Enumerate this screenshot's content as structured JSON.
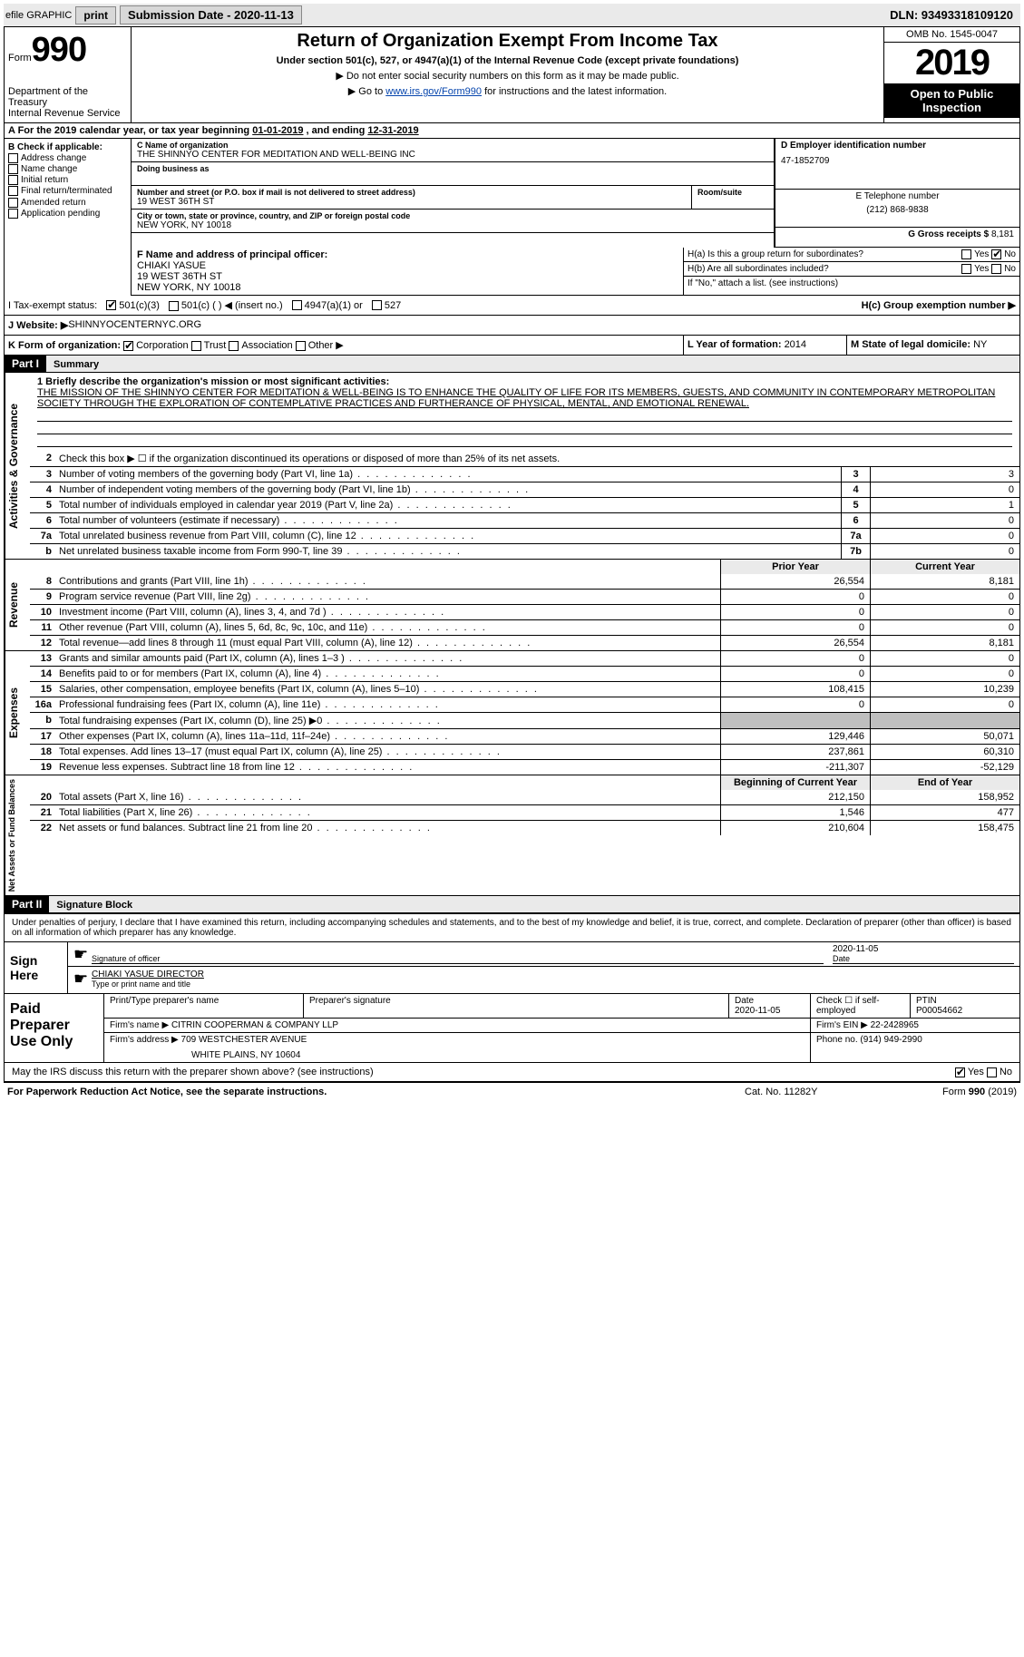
{
  "topbar": {
    "efile_label": "efile GRAPHIC",
    "print_btn": "print",
    "submission_label": "Submission Date - 2020-11-13",
    "dln": "DLN: 93493318109120"
  },
  "header": {
    "form_prefix": "Form",
    "form_number": "990",
    "dept1": "Department of the Treasury",
    "dept2": "Internal Revenue Service",
    "title": "Return of Organization Exempt From Income Tax",
    "subtitle": "Under section 501(c), 527, or 4947(a)(1) of the Internal Revenue Code (except private foundations)",
    "note1": "▶ Do not enter social security numbers on this form as it may be made public.",
    "note2_pre": "▶ Go to ",
    "note2_link": "www.irs.gov/Form990",
    "note2_post": " for instructions and the latest information.",
    "omb": "OMB No. 1545-0047",
    "year": "2019",
    "inspect1": "Open to Public",
    "inspect2": "Inspection"
  },
  "period": {
    "label_a": "A For the 2019 calendar year, or tax year beginning ",
    "begin": "01-01-2019",
    "mid": " , and ending ",
    "end": "12-31-2019"
  },
  "colB": {
    "header": "B Check if applicable:",
    "items": [
      "Address change",
      "Name change",
      "Initial return",
      "Final return/terminated",
      "Amended return",
      "Application pending"
    ]
  },
  "colC": {
    "name_lbl": "C Name of organization",
    "name": "THE SHINNYO CENTER FOR MEDITATION AND WELL-BEING INC",
    "dba_lbl": "Doing business as",
    "addr_lbl": "Number and street (or P.O. box if mail is not delivered to street address)",
    "addr": "19 WEST 36TH ST",
    "room_lbl": "Room/suite",
    "city_lbl": "City or town, state or province, country, and ZIP or foreign postal code",
    "city": "NEW YORK, NY  10018"
  },
  "colD": {
    "ein_lbl": "D Employer identification number",
    "ein": "47-1852709",
    "phone_lbl": "E Telephone number",
    "phone": "(212) 868-9838",
    "gross_lbl": "G Gross receipts $ ",
    "gross": "8,181"
  },
  "officer": {
    "lbl": "F Name and address of principal officer:",
    "name": "CHIAKI YASUE",
    "addr1": "19 WEST 36TH ST",
    "addr2": "NEW YORK, NY  10018"
  },
  "h": {
    "ha_lbl": "H(a)  Is this a group return for subordinates?",
    "hb_lbl": "H(b)  Are all subordinates included?",
    "hb_note": "If \"No,\" attach a list. (see instructions)",
    "hc_lbl": "H(c)  Group exemption number ▶",
    "yes": "Yes",
    "no": "No"
  },
  "tax": {
    "lbl": "I  Tax-exempt status:",
    "c3": "501(c)(3)",
    "c": "501(c) (  ) ◀ (insert no.)",
    "a1": "4947(a)(1) or",
    "s527": "527"
  },
  "web": {
    "lbl": "J  Website: ▶ ",
    "val": "SHINNYOCENTERNYC.ORG"
  },
  "orgK": {
    "lbl": "K Form of organization:",
    "corp": "Corporation",
    "trust": "Trust",
    "assoc": "Association",
    "other": "Other ▶",
    "yr_lbl": "L Year of formation: ",
    "yr": "2014",
    "state_lbl": "M State of legal domicile: ",
    "state": "NY"
  },
  "part1": {
    "hdr": "Part I",
    "title": "Summary"
  },
  "mission": {
    "lbl": "1  Briefly describe the organization's mission or most significant activities:",
    "txt": "THE MISSION OF THE SHINNYO CENTER FOR MEDITATION & WELL-BEING IS TO ENHANCE THE QUALITY OF LIFE FOR ITS MEMBERS, GUESTS, AND COMMUNITY IN CONTEMPORARY METROPOLITAN SOCIETY THROUGH THE EXPLORATION OF CONTEMPLATIVE PRACTICES AND FURTHERANCE OF PHYSICAL, MENTAL, AND EMOTIONAL RENEWAL."
  },
  "lines_gov": [
    {
      "n": "2",
      "d": "Check this box ▶ ☐  if the organization discontinued its operations or disposed of more than 25% of its net assets.",
      "k": "",
      "v": ""
    },
    {
      "n": "3",
      "d": "Number of voting members of the governing body (Part VI, line 1a)",
      "k": "3",
      "v": "3"
    },
    {
      "n": "4",
      "d": "Number of independent voting members of the governing body (Part VI, line 1b)",
      "k": "4",
      "v": "0"
    },
    {
      "n": "5",
      "d": "Total number of individuals employed in calendar year 2019 (Part V, line 2a)",
      "k": "5",
      "v": "1"
    },
    {
      "n": "6",
      "d": "Total number of volunteers (estimate if necessary)",
      "k": "6",
      "v": "0"
    },
    {
      "n": "7a",
      "d": "Total unrelated business revenue from Part VIII, column (C), line 12",
      "k": "7a",
      "v": "0"
    },
    {
      "n": "b",
      "d": "Net unrelated business taxable income from Form 990-T, line 39",
      "k": "7b",
      "v": "0"
    }
  ],
  "col_hdr": {
    "prior": "Prior Year",
    "current": "Current Year"
  },
  "lines_rev": [
    {
      "n": "8",
      "d": "Contributions and grants (Part VIII, line 1h)",
      "p": "26,554",
      "c": "8,181"
    },
    {
      "n": "9",
      "d": "Program service revenue (Part VIII, line 2g)",
      "p": "0",
      "c": "0"
    },
    {
      "n": "10",
      "d": "Investment income (Part VIII, column (A), lines 3, 4, and 7d )",
      "p": "0",
      "c": "0"
    },
    {
      "n": "11",
      "d": "Other revenue (Part VIII, column (A), lines 5, 6d, 8c, 9c, 10c, and 11e)",
      "p": "0",
      "c": "0"
    },
    {
      "n": "12",
      "d": "Total revenue—add lines 8 through 11 (must equal Part VIII, column (A), line 12)",
      "p": "26,554",
      "c": "8,181"
    }
  ],
  "lines_exp": [
    {
      "n": "13",
      "d": "Grants and similar amounts paid (Part IX, column (A), lines 1–3 )",
      "p": "0",
      "c": "0"
    },
    {
      "n": "14",
      "d": "Benefits paid to or for members (Part IX, column (A), line 4)",
      "p": "0",
      "c": "0"
    },
    {
      "n": "15",
      "d": "Salaries, other compensation, employee benefits (Part IX, column (A), lines 5–10)",
      "p": "108,415",
      "c": "10,239"
    },
    {
      "n": "16a",
      "d": "Professional fundraising fees (Part IX, column (A), line 11e)",
      "p": "0",
      "c": "0"
    },
    {
      "n": "b",
      "d": "Total fundraising expenses (Part IX, column (D), line 25) ▶0",
      "p": "shade",
      "c": "shade"
    },
    {
      "n": "17",
      "d": "Other expenses (Part IX, column (A), lines 11a–11d, 11f–24e)",
      "p": "129,446",
      "c": "50,071"
    },
    {
      "n": "18",
      "d": "Total expenses. Add lines 13–17 (must equal Part IX, column (A), line 25)",
      "p": "237,861",
      "c": "60,310"
    },
    {
      "n": "19",
      "d": "Revenue less expenses. Subtract line 18 from line 12",
      "p": "-211,307",
      "c": "-52,129"
    }
  ],
  "col_hdr2": {
    "beg": "Beginning of Current Year",
    "end": "End of Year"
  },
  "lines_na": [
    {
      "n": "20",
      "d": "Total assets (Part X, line 16)",
      "p": "212,150",
      "c": "158,952"
    },
    {
      "n": "21",
      "d": "Total liabilities (Part X, line 26)",
      "p": "1,546",
      "c": "477"
    },
    {
      "n": "22",
      "d": "Net assets or fund balances. Subtract line 21 from line 20",
      "p": "210,604",
      "c": "158,475"
    }
  ],
  "vtabs": {
    "gov": "Activities & Governance",
    "rev": "Revenue",
    "exp": "Expenses",
    "na": "Net Assets or Fund Balances"
  },
  "part2": {
    "hdr": "Part II",
    "title": "Signature Block"
  },
  "perjury": "Under penalties of perjury, I declare that I have examined this return, including accompanying schedules and statements, and to the best of my knowledge and belief, it is true, correct, and complete. Declaration of preparer (other than officer) is based on all information of which preparer has any knowledge.",
  "sign": {
    "here": "Sign Here",
    "sig_lbl": "Signature of officer",
    "date_lbl": "Date",
    "date": "2020-11-05",
    "name": "CHIAKI YASUE  DIRECTOR",
    "name_lbl": "Type or print name and title"
  },
  "prep": {
    "title": "Paid Preparer Use Only",
    "r1": {
      "c1": "Print/Type preparer's name",
      "c2": "Preparer's signature",
      "c3_lbl": "Date",
      "c3": "2020-11-05",
      "c4_lbl": "Check ☐ if self-employed",
      "c5_lbl": "PTIN",
      "c5": "P00054662"
    },
    "r2": {
      "lbl": "Firm's name    ▶ ",
      "val": "CITRIN COOPERMAN & COMPANY LLP",
      "ein_lbl": "Firm's EIN ▶ ",
      "ein": "22-2428965"
    },
    "r3": {
      "lbl": "Firm's address ▶ ",
      "val1": "709 WESTCHESTER AVENUE",
      "val2": "WHITE PLAINS, NY  10604",
      "ph_lbl": "Phone no. ",
      "ph": "(914) 949-2990"
    }
  },
  "discuss": {
    "lbl": "May the IRS discuss this return with the preparer shown above? (see instructions)",
    "yes": "Yes",
    "no": "No"
  },
  "footer": {
    "f1": "For Paperwork Reduction Act Notice, see the separate instructions.",
    "f2": "Cat. No. 11282Y",
    "f3": "Form 990 (2019)"
  }
}
